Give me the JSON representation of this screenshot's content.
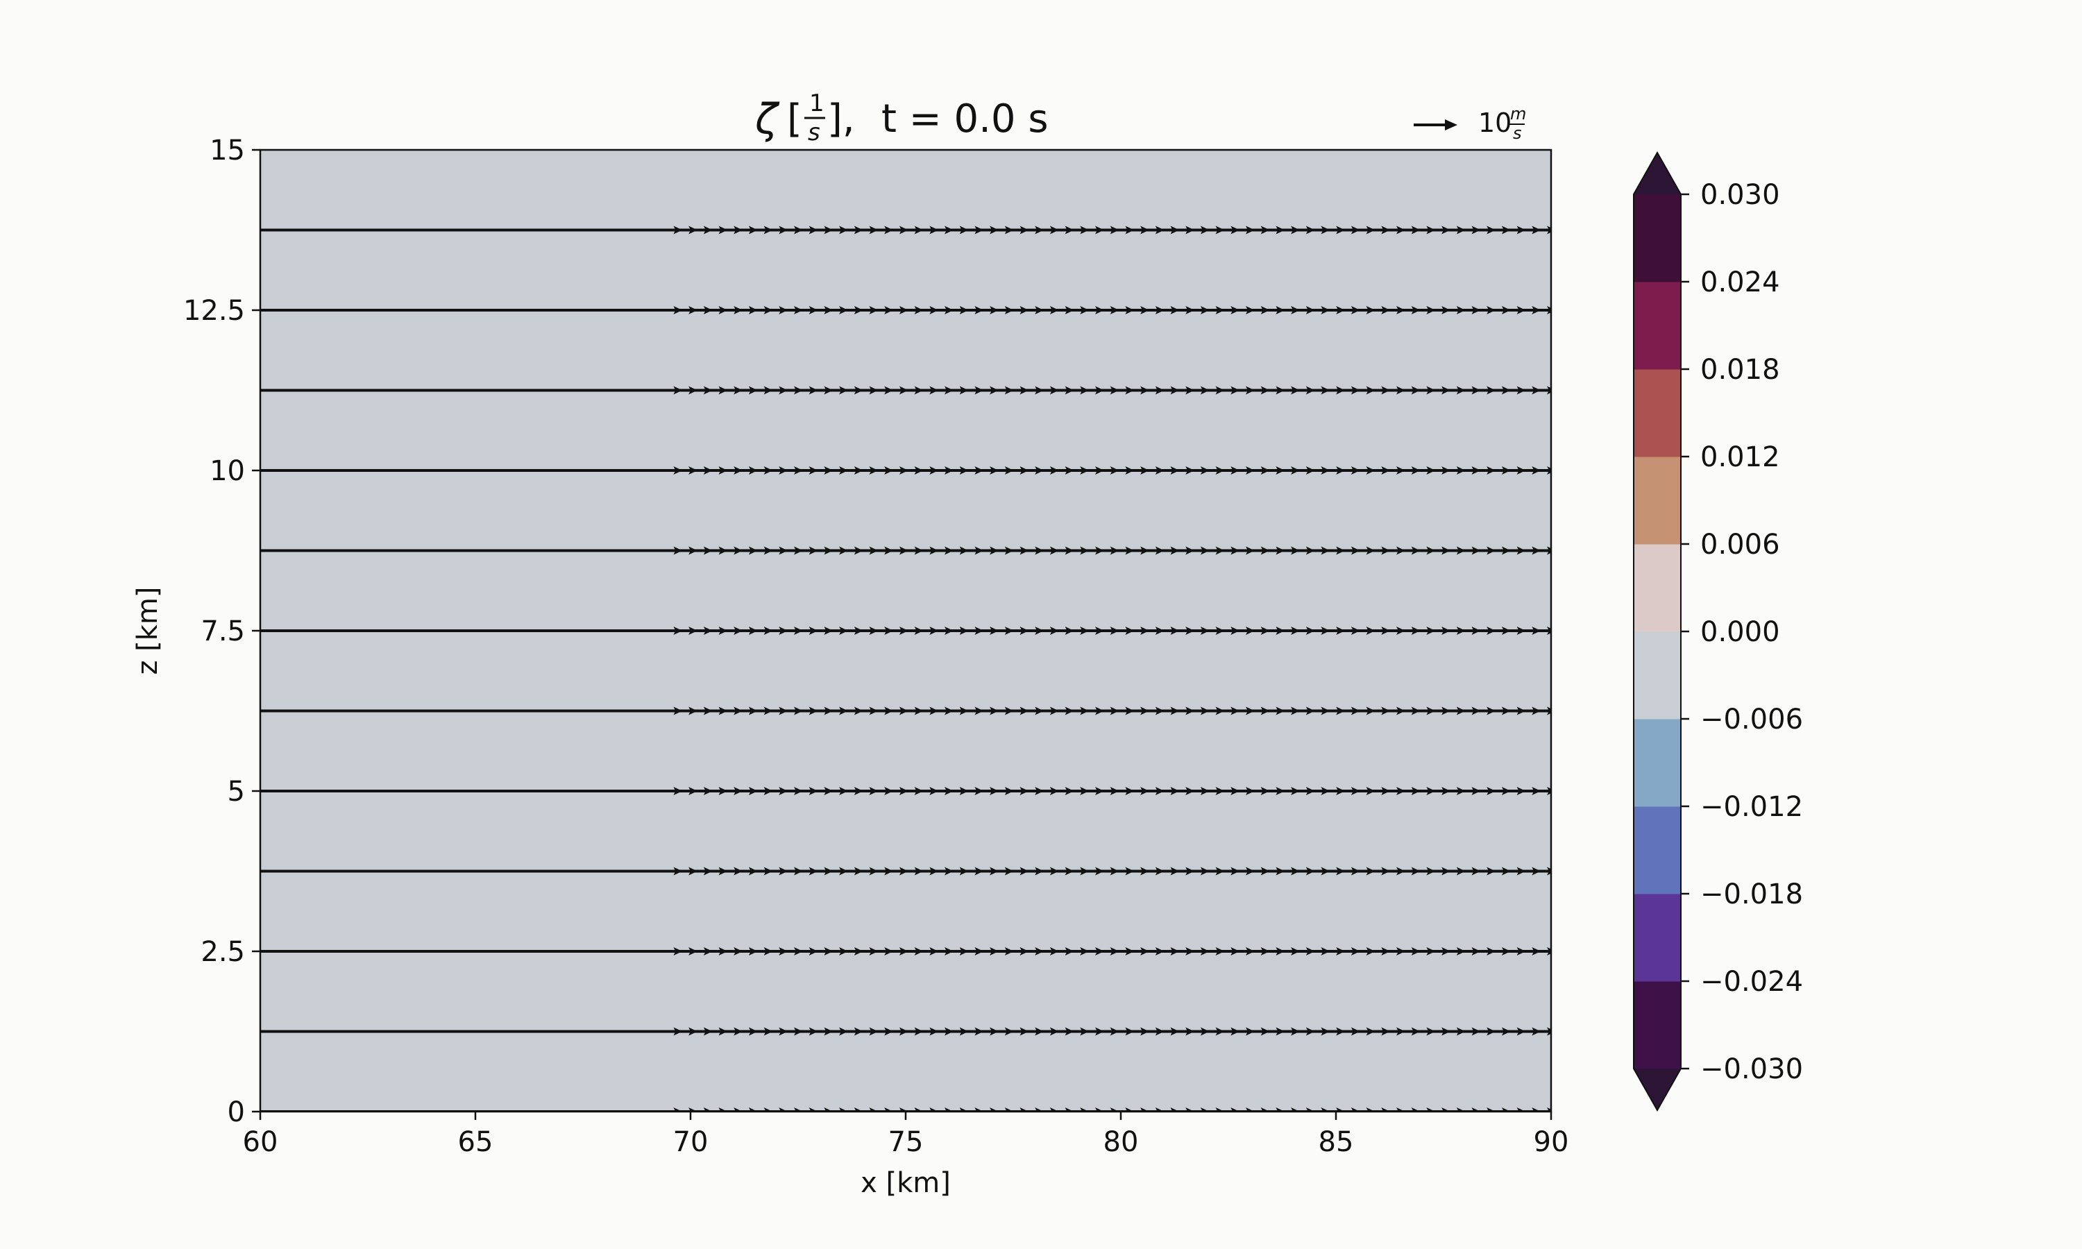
{
  "chart_data": {
    "type": "heatmap",
    "title": {
      "symbol": "ζ",
      "unit_open": "[",
      "unit_num": "1",
      "unit_den": "s",
      "unit_close": "],",
      "time": "t = 0.0 s"
    },
    "xlabel": "x [km]",
    "ylabel": "z [km]",
    "xlim": [
      60,
      90
    ],
    "ylim": [
      0,
      15
    ],
    "x_ticks": [
      60,
      65,
      70,
      75,
      80,
      85,
      90
    ],
    "x_tick_labels": [
      "60",
      "65",
      "70",
      "75",
      "80",
      "85",
      "90"
    ],
    "y_ticks": [
      0,
      2.5,
      5,
      7.5,
      10,
      12.5,
      15
    ],
    "y_tick_labels": [
      "0",
      "2.5",
      "5",
      "7.5",
      "10",
      "12.5",
      "15"
    ],
    "field_value": 0.0,
    "field_color": "#c9ced4",
    "quiver": {
      "rows_z": [
        0,
        1.25,
        2.5,
        3.75,
        5,
        6.25,
        7.5,
        8.75,
        10,
        11.25,
        12.5,
        13.75
      ],
      "arrow_x_start": 69.7,
      "arrow_x_end": 90,
      "arrow_dx": 0.35,
      "line_x_start": 60,
      "u_mps": 10,
      "reference": {
        "value": "10",
        "unit_num": "m",
        "unit_den": "s"
      }
    },
    "colorbar": {
      "levels": [
        -0.03,
        -0.024,
        -0.018,
        -0.012,
        -0.006,
        0.0,
        0.006,
        0.012,
        0.018,
        0.024,
        0.03
      ],
      "tick_labels": [
        "−0.030",
        "−0.024",
        "−0.018",
        "−0.012",
        "−0.006",
        "0.000",
        "0.006",
        "0.012",
        "0.018",
        "0.024",
        "0.030"
      ],
      "colors": [
        "#3e1149",
        "#5c3697",
        "#6174bb",
        "#84a8c5",
        "#c9ced4",
        "#dbcac8",
        "#c59374",
        "#ac5250",
        "#7e1d4d",
        "#3e1038"
      ],
      "under_color": "#2d1535",
      "over_color": "#2d1535",
      "extend": "both"
    }
  }
}
